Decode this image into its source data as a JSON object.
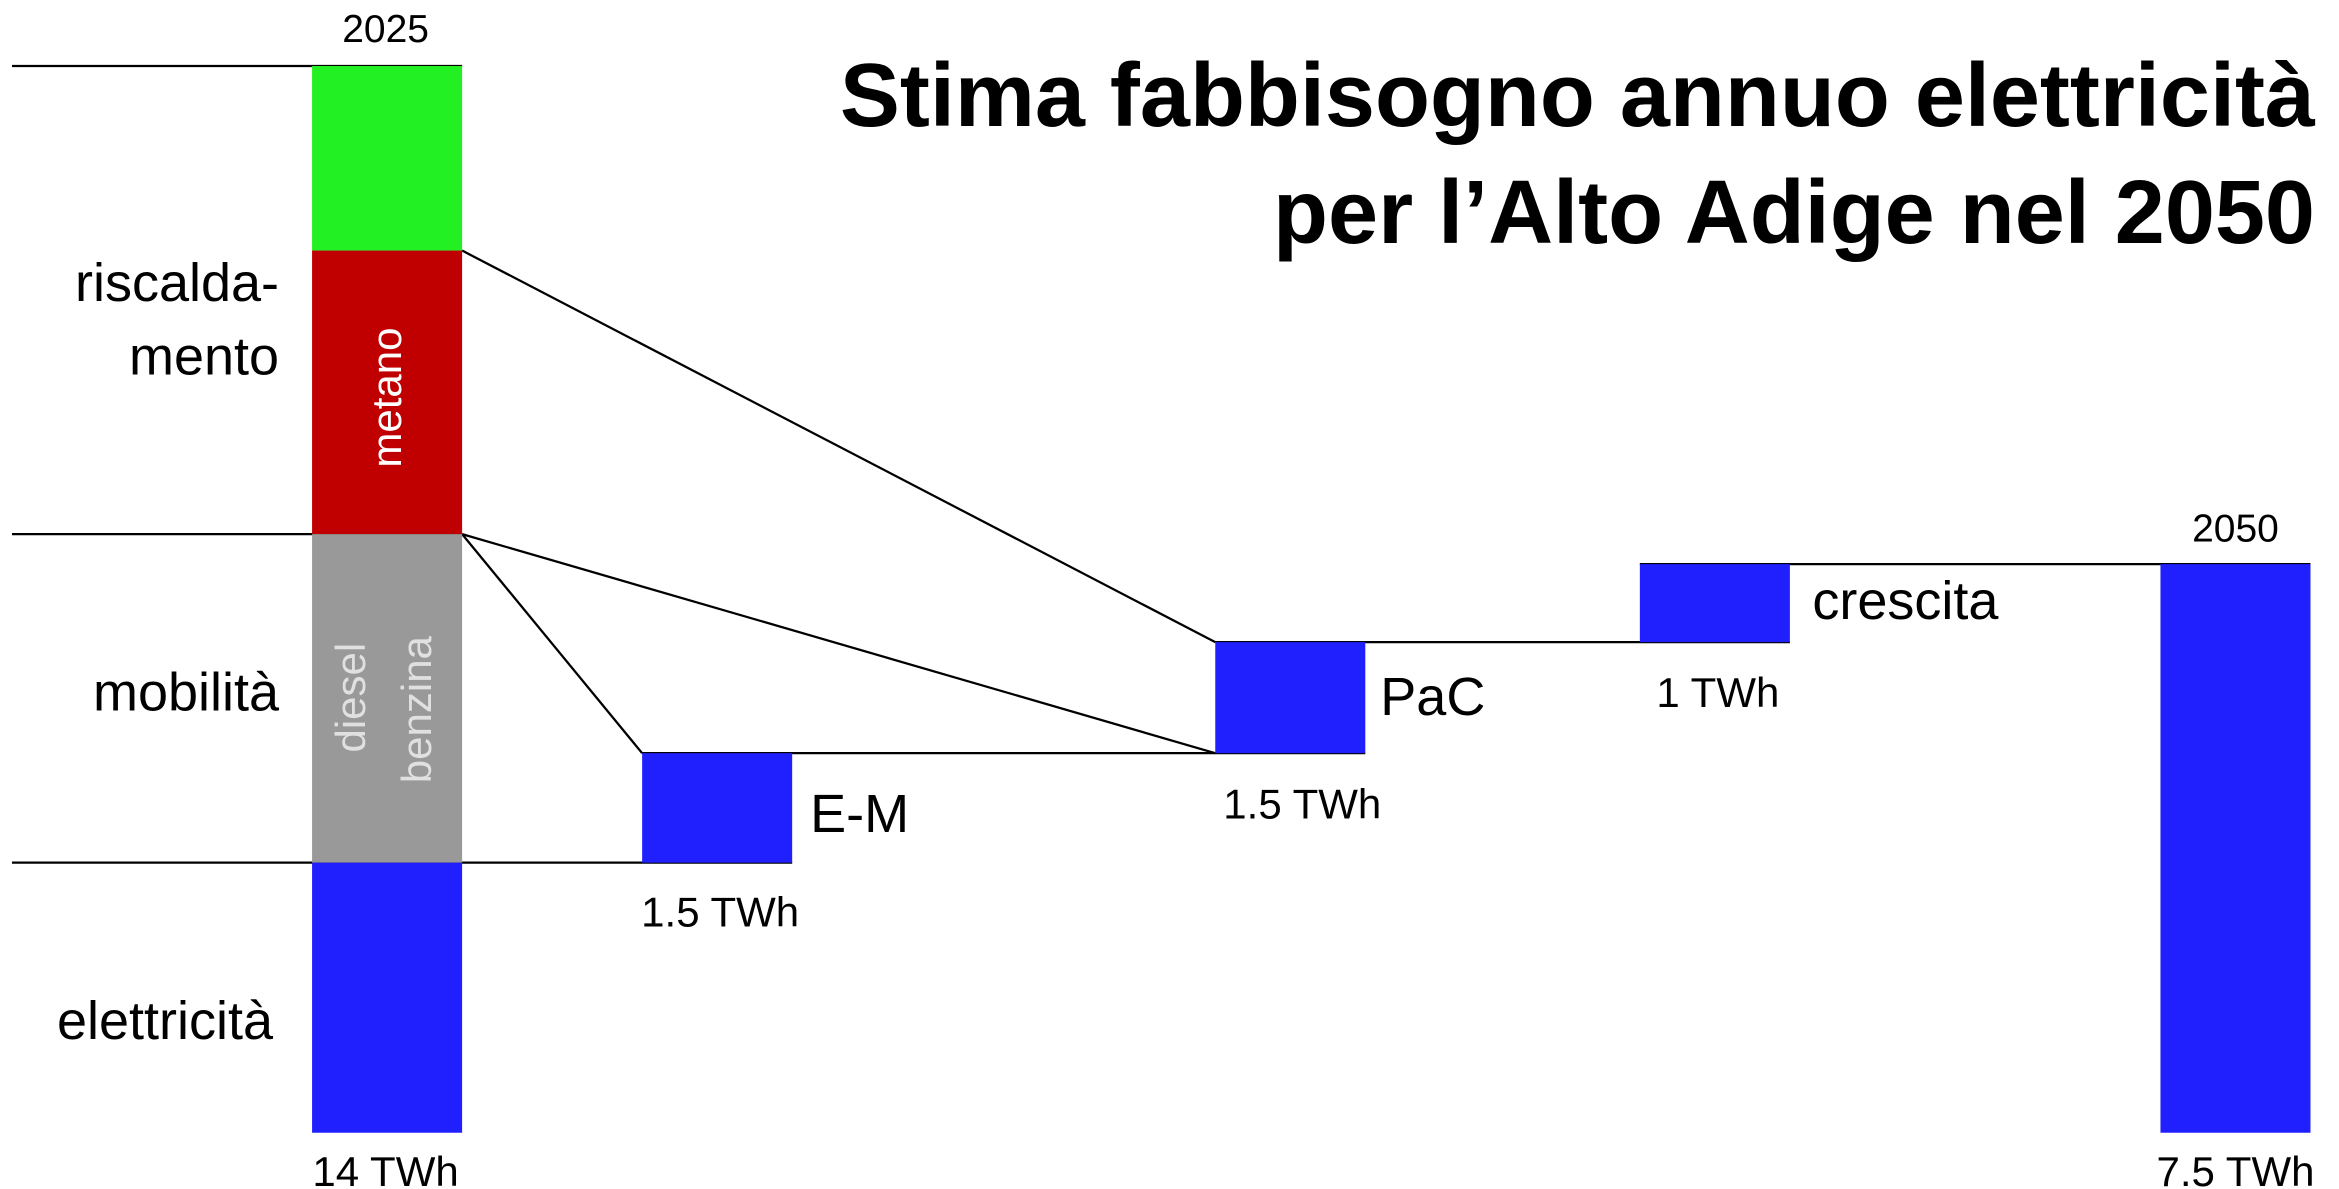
{
  "title": [
    "Stima fabbisogno annuo elettricità",
    "per l’Alto Adige nel 2050"
  ],
  "start": {
    "year": "2025",
    "total": "14 TWh",
    "sectors": [
      "riscalda-",
      "mento",
      "mobilità",
      "elettricità"
    ],
    "segments": [
      "metano",
      "diesel",
      "benzina"
    ]
  },
  "steps": [
    {
      "label": "E-M",
      "amount": "1.5 TWh"
    },
    {
      "label": "PaC",
      "amount": "1.5 TWh"
    },
    {
      "label": "crescita",
      "amount": "1 TWh"
    }
  ],
  "end": {
    "year": "2050",
    "total": "7.5 TWh"
  }
}
